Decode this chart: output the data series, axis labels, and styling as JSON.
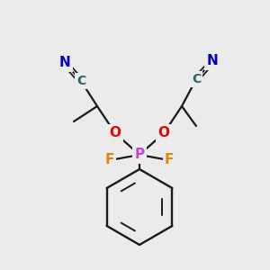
{
  "bg_color": "#ebebeb",
  "colors": {
    "C": "#2f6060",
    "N": "#0000cc",
    "O": "#ee0000",
    "P": "#cc44cc",
    "F": "#dd8800",
    "bond": "#1a1a1a"
  },
  "figsize": [
    3.0,
    3.0
  ],
  "dpi": 100
}
